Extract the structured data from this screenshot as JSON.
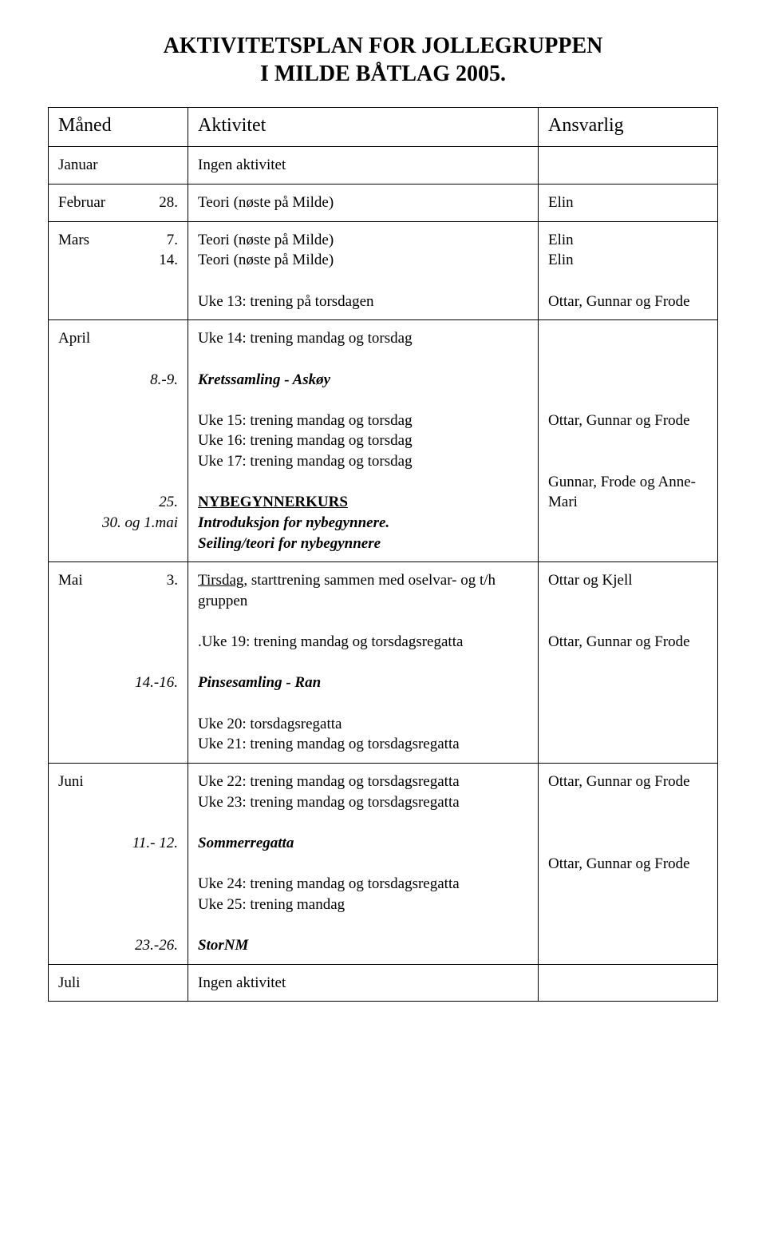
{
  "title_line1": "AKTIVITETSPLAN FOR JOLLEGRUPPEN",
  "title_line2": "I MILDE BÅTLAG 2005.",
  "headers": {
    "month": "Måned",
    "activity": "Aktivitet",
    "responsible": "Ansvarlig"
  },
  "rows": {
    "jan": {
      "month": "Januar",
      "activity": "Ingen aktivitet",
      "responsible": ""
    },
    "feb": {
      "month": "Februar",
      "date": "28.",
      "activity": "Teori (nøste på Milde)",
      "responsible": "Elin"
    },
    "mar": {
      "month": "Mars",
      "date1": "7.",
      "date2": "14.",
      "act1": "Teori (nøste på Milde)",
      "act2": "Teori (nøste på Milde)",
      "act3": "Uke 13: trening på torsdagen",
      "resp1": "Elin",
      "resp2": "Elin",
      "resp3": "Ottar, Gunnar og Frode"
    },
    "apr": {
      "month": "April",
      "date1": "8.-9.",
      "date2": "25.",
      "date3": "30. og 1.mai",
      "act1": "Uke 14: trening mandag og torsdag",
      "act2": "Kretssamling - Askøy",
      "act3": "Uke 15: trening mandag og torsdag",
      "act4": "Uke 16: trening mandag og torsdag",
      "act5": "Uke 17: trening mandag og torsdag",
      "act6": "NYBEGYNNERKURS",
      "act7": "Introduksjon for nybegynnere.",
      "act8": "Seiling/teori for nybegynnere",
      "resp1": "Ottar, Gunnar og Frode",
      "resp2": "Gunnar, Frode og Anne-Mari"
    },
    "mai": {
      "month": "Mai",
      "date1": "3.",
      "date2": "14.-16.",
      "act1a": "Tirsdag,",
      "act1b": " starttrening sammen med oselvar- og t/h gruppen",
      "act2": ".Uke 19: trening mandag og torsdagsregatta",
      "act3": " Pinsesamling - Ran",
      "act4": "Uke 20: torsdagsregatta",
      "act5": "Uke 21: trening mandag og torsdagsregatta",
      "resp1": "Ottar og Kjell",
      "resp2": "Ottar, Gunnar og Frode"
    },
    "jun": {
      "month": "Juni",
      "date1": "11.- 12.",
      "date2": "23.-26.",
      "act1": "Uke 22: trening mandag og torsdagsregatta",
      "act2": "Uke 23: trening mandag og torsdagsregatta",
      "act3": "Sommerregatta",
      "act4": "Uke 24: trening mandag og torsdagsregatta",
      "act5": "Uke 25: trening mandag",
      "act6": "StorNM",
      "resp1": "Ottar, Gunnar og Frode",
      "resp2": "Ottar, Gunnar og Frode"
    },
    "jul": {
      "month": "Juli",
      "activity": "Ingen aktivitet",
      "responsible": ""
    }
  }
}
